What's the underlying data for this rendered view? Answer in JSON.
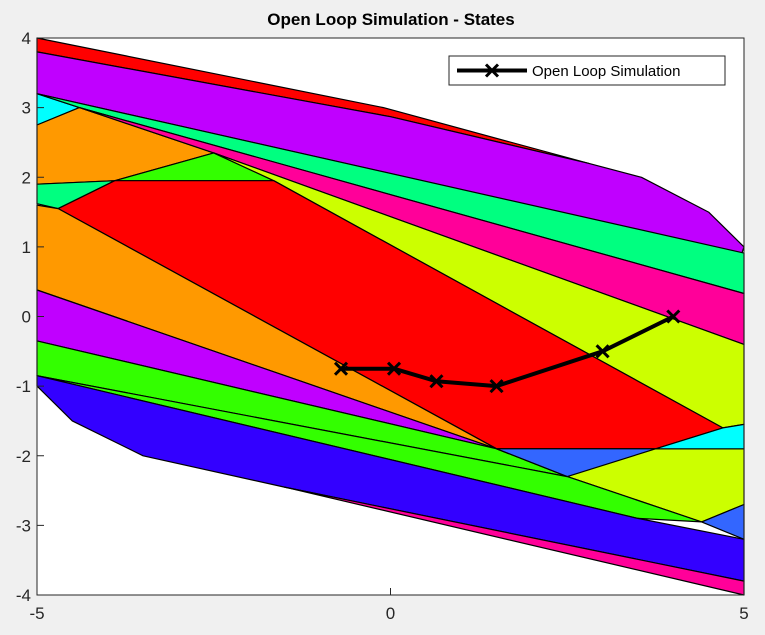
{
  "chart_data": {
    "type": "line",
    "title": "Open Loop Simulation - States",
    "xlabel": "",
    "ylabel": "",
    "xlim": [
      -5,
      5
    ],
    "ylim": [
      -4,
      4
    ],
    "xticks": [
      "-5",
      "0",
      "5"
    ],
    "yticks": [
      "4",
      "3",
      "2",
      "1",
      "0",
      "-1",
      "-2",
      "-3",
      "-4"
    ],
    "grid": false,
    "legend_position": "top-right",
    "series": [
      {
        "name": "Open Loop Simulation",
        "color": "#000000",
        "marker": "x",
        "x": [
          4.0,
          3.0,
          1.5,
          0.65,
          0.05,
          -0.7
        ],
        "y": [
          0.0,
          -0.5,
          -1.0,
          -0.93,
          -0.75,
          -0.75
        ]
      }
    ],
    "regions": [
      {
        "color": "#ff0000",
        "points": [
          [
            -5,
            4
          ],
          [
            -5,
            3.8
          ],
          [
            0,
            2.87
          ],
          [
            2.8,
            2.2
          ],
          [
            -0.1,
            3.0
          ]
        ]
      },
      {
        "color": "#c000ff",
        "points": [
          [
            -5,
            3.8
          ],
          [
            -5,
            3.2
          ],
          [
            4.97,
            0.91
          ],
          [
            5,
            1.0
          ],
          [
            4.5,
            1.5
          ],
          [
            3.55,
            2.0
          ],
          [
            2.8,
            2.2
          ],
          [
            0,
            2.87
          ]
        ]
      },
      {
        "color": "#00ffff",
        "points": [
          [
            -5,
            3.2
          ],
          [
            -5,
            2.75
          ],
          [
            -4.4,
            3.0
          ]
        ]
      },
      {
        "color": "#00ff80",
        "points": [
          [
            -5,
            3.2
          ],
          [
            -4.4,
            3.0
          ],
          [
            5,
            0.33
          ],
          [
            5,
            0.91
          ]
        ]
      },
      {
        "color": "#ff9900",
        "points": [
          [
            -5,
            2.75
          ],
          [
            -4.4,
            3.0
          ],
          [
            -2.5,
            2.35
          ],
          [
            -3.9,
            1.95
          ],
          [
            -5,
            1.9
          ]
        ]
      },
      {
        "color": "#ff0099",
        "points": [
          [
            -2.5,
            2.35
          ],
          [
            -4.4,
            3.0
          ],
          [
            5,
            0.33
          ],
          [
            5,
            -0.4
          ]
        ]
      },
      {
        "color": "#00ff80",
        "points": [
          [
            -5,
            1.9
          ],
          [
            -3.9,
            1.95
          ],
          [
            -4.7,
            1.55
          ],
          [
            -5,
            1.62
          ]
        ]
      },
      {
        "color": "#33ff00",
        "points": [
          [
            -3.9,
            1.95
          ],
          [
            -2.5,
            2.35
          ],
          [
            -1.65,
            1.95
          ]
        ]
      },
      {
        "color": "#ccff00",
        "points": [
          [
            -1.65,
            1.95
          ],
          [
            -2.5,
            2.35
          ],
          [
            5,
            -0.4
          ],
          [
            5,
            -1.55
          ],
          [
            4.7,
            -1.6
          ]
        ]
      },
      {
        "color": "#ff0000",
        "points": [
          [
            -4.7,
            1.55
          ],
          [
            -3.9,
            1.95
          ],
          [
            -1.65,
            1.95
          ],
          [
            4.7,
            -1.6
          ],
          [
            3.75,
            -1.9
          ],
          [
            1.5,
            -1.9
          ]
        ]
      },
      {
        "color": "#ff9900",
        "points": [
          [
            -5,
            1.6
          ],
          [
            -4.7,
            1.55
          ],
          [
            1.5,
            -1.9
          ],
          [
            -5,
            0.38
          ]
        ]
      },
      {
        "color": "#c000ff",
        "points": [
          [
            -5,
            0.38
          ],
          [
            1.5,
            -1.9
          ],
          [
            -5,
            -0.35
          ]
        ]
      },
      {
        "color": "#33ff00",
        "points": [
          [
            -5,
            -0.35
          ],
          [
            1.5,
            -1.9
          ],
          [
            2.5,
            -2.3
          ],
          [
            -5,
            -0.85
          ]
        ]
      },
      {
        "color": "#ccff00",
        "points": [
          [
            1.5,
            -1.9
          ],
          [
            2.5,
            -2.3
          ],
          [
            4.4,
            -2.95
          ],
          [
            5,
            -2.7
          ],
          [
            5,
            -1.9
          ],
          [
            4.0,
            -1.9
          ]
        ]
      },
      {
        "color": "#3366ff",
        "points": [
          [
            1.5,
            -1.9
          ],
          [
            3.75,
            -1.9
          ],
          [
            2.5,
            -2.3
          ]
        ]
      },
      {
        "color": "#00ffff",
        "points": [
          [
            3.75,
            -1.9
          ],
          [
            4.7,
            -1.6
          ],
          [
            5,
            -1.55
          ],
          [
            5,
            -1.9
          ],
          [
            4.0,
            -1.9
          ]
        ]
      },
      {
        "color": "#33ff00",
        "points": [
          [
            -5,
            -0.85
          ],
          [
            2.5,
            -2.3
          ],
          [
            4.4,
            -2.95
          ],
          [
            3.5,
            -2.9
          ]
        ]
      },
      {
        "color": "#3366ff",
        "points": [
          [
            4.4,
            -2.95
          ],
          [
            5,
            -2.7
          ],
          [
            5,
            -3.2
          ]
        ]
      },
      {
        "color": "#3300ff",
        "points": [
          [
            -5,
            -0.85
          ],
          [
            3.5,
            -2.9
          ],
          [
            5,
            -3.2
          ],
          [
            5,
            -3.8
          ],
          [
            -1.5,
            -2.45
          ],
          [
            -3.5,
            -2.0
          ],
          [
            -4.5,
            -1.5
          ],
          [
            -5,
            -1.0
          ]
        ]
      },
      {
        "color": "#ff0099",
        "points": [
          [
            -1.5,
            -2.45
          ],
          [
            5,
            -3.8
          ],
          [
            5,
            -4.0
          ]
        ]
      }
    ]
  }
}
